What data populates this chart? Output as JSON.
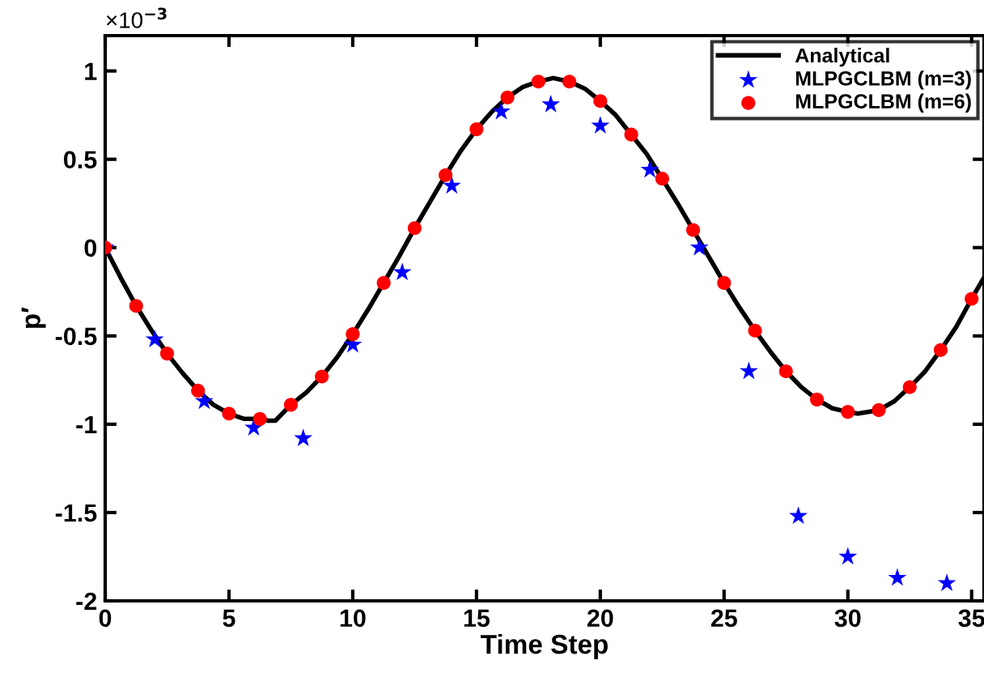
{
  "chart_data": {
    "type": "line",
    "xlabel": "Time Step",
    "ylabel": "p′",
    "annotations": [
      "×10$^{−3}$"
    ],
    "xlim": [
      0,
      35.5
    ],
    "xticks": [
      0,
      5,
      10,
      15,
      20,
      25,
      30,
      35
    ],
    "ylim": [
      -2,
      1.2
    ],
    "yticks": [
      -2,
      -1.5,
      -1,
      -0.5,
      0,
      0.5,
      1
    ],
    "grid": false,
    "legend": "top right",
    "series": [
      {
        "name": "Analytical",
        "color": "#000000",
        "marker": "none",
        "line_style": "solid",
        "x": [
          0,
          0.625,
          1.25,
          1.875,
          2.5,
          3.125,
          3.75,
          4.375,
          5,
          5.625,
          6.25,
          6.6,
          6.875,
          7.5,
          8.125,
          8.75,
          9.375,
          10,
          10.625,
          11.25,
          11.875,
          12.5,
          13.125,
          13.75,
          14.375,
          15,
          15.625,
          16.25,
          16.875,
          17.5,
          18.1,
          18.75,
          19.375,
          20,
          20.625,
          21.25,
          21.875,
          22.5,
          23.125,
          23.75,
          24.375,
          25,
          25.625,
          26.25,
          26.875,
          27.5,
          28.125,
          28.75,
          29.375,
          30,
          30.4,
          31.25,
          31.875,
          32.5,
          33.125,
          33.75,
          34.375,
          35,
          35.5
        ],
        "values": [
          0,
          -0.17,
          -0.33,
          -0.47,
          -0.6,
          -0.71,
          -0.81,
          -0.89,
          -0.94,
          -0.97,
          -0.97,
          -0.98,
          -0.98,
          -0.89,
          -0.82,
          -0.73,
          -0.62,
          -0.49,
          -0.35,
          -0.2,
          -0.05,
          0.11,
          0.26,
          0.41,
          0.55,
          0.67,
          0.77,
          0.85,
          0.91,
          0.94,
          0.96,
          0.94,
          0.9,
          0.83,
          0.75,
          0.64,
          0.53,
          0.39,
          0.25,
          0.1,
          -0.05,
          -0.2,
          -0.34,
          -0.47,
          -0.59,
          -0.7,
          -0.79,
          -0.86,
          -0.91,
          -0.93,
          -0.94,
          -0.92,
          -0.87,
          -0.79,
          -0.7,
          -0.58,
          -0.45,
          -0.29,
          -0.17
        ]
      },
      {
        "name": "MLPGCLBM (m=3)",
        "type": "scatter",
        "color": "#0000ff",
        "marker": "star",
        "x": [
          0,
          2,
          4,
          6,
          8,
          10,
          12,
          14,
          16,
          18,
          20,
          22,
          24,
          26,
          28,
          30,
          32,
          34
        ],
        "values": [
          0,
          -0.52,
          -0.87,
          -1.02,
          -1.08,
          -0.55,
          -0.14,
          0.35,
          0.77,
          0.81,
          0.69,
          0.44,
          0.0,
          -0.7,
          -1.52,
          -1.75,
          -1.87,
          -1.9
        ]
      },
      {
        "name": "MLPGCLBM (m=6)",
        "type": "scatter",
        "color": "#ff0000",
        "marker": "circle",
        "x": [
          0,
          1.25,
          2.5,
          3.75,
          5,
          6.25,
          7.5,
          8.75,
          10,
          11.25,
          12.5,
          13.75,
          15,
          16.25,
          17.5,
          18.75,
          20,
          21.25,
          22.5,
          23.75,
          25,
          26.25,
          27.5,
          28.75,
          30,
          31.25,
          32.5,
          33.75,
          35
        ],
        "values": [
          0,
          -0.33,
          -0.6,
          -0.81,
          -0.94,
          -0.97,
          -0.89,
          -0.73,
          -0.49,
          -0.2,
          0.11,
          0.41,
          0.67,
          0.85,
          0.94,
          0.94,
          0.83,
          0.64,
          0.39,
          0.1,
          -0.2,
          -0.47,
          -0.7,
          -0.86,
          -0.93,
          -0.92,
          -0.79,
          -0.58,
          -0.29
        ]
      }
    ]
  }
}
